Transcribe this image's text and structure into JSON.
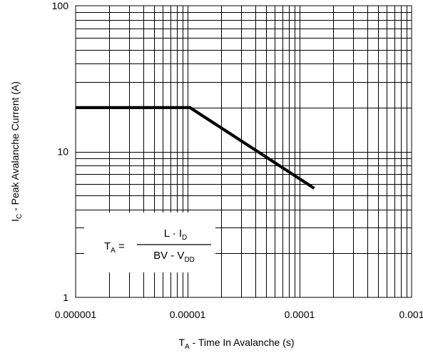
{
  "chart_data": {
    "type": "line",
    "title": "",
    "xlabel": {
      "main": "T",
      "sub": "A",
      "rest": " -  Time In Avalanche (s)"
    },
    "ylabel": {
      "main": "I",
      "sub": "C",
      "rest": " -  Peak Avalanche Current (A)"
    },
    "x_scale": "log",
    "y_scale": "log",
    "xlim": [
      1e-06,
      0.001
    ],
    "ylim": [
      1,
      100
    ],
    "x_ticks": [
      1e-06,
      1e-05,
      0.0001,
      0.001
    ],
    "x_tick_labels": [
      "0.000001",
      "0.00001",
      "0.0001",
      "0.001"
    ],
    "y_ticks": [
      1,
      10,
      100
    ],
    "y_tick_labels": [
      "1",
      "10",
      "100"
    ],
    "grid": true,
    "series": [
      {
        "x": [
          1e-06,
          1.05e-05,
          0.000135
        ],
        "y": [
          20,
          20,
          5.6
        ]
      }
    ],
    "annotation": {
      "lhs_main": "T",
      "lhs_sub": "A",
      "equals": " = ",
      "num_main": "L · I",
      "num_sub": "D",
      "den_main": "BV - V",
      "den_sub": "DD"
    }
  }
}
